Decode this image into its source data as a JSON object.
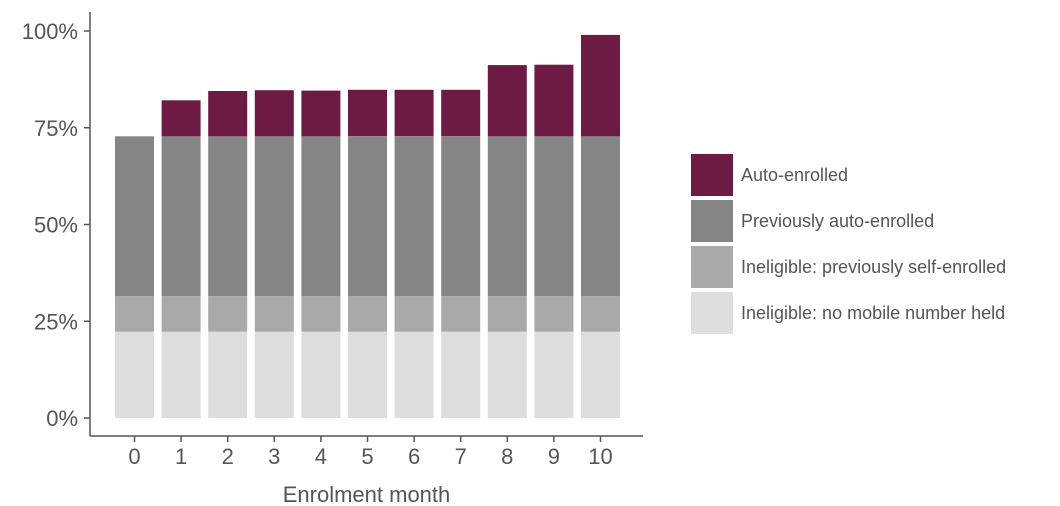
{
  "chart_data": {
    "type": "bar",
    "stacked": true,
    "title": "",
    "xlabel": "Enrolment month",
    "ylabel": "",
    "categories": [
      "0",
      "1",
      "2",
      "3",
      "4",
      "5",
      "6",
      "7",
      "8",
      "9",
      "10"
    ],
    "ylim": [
      0,
      100
    ],
    "y_ticks": [
      0,
      25,
      50,
      75,
      100
    ],
    "y_tick_labels": [
      "0%",
      "25%",
      "50%",
      "75%",
      "100%"
    ],
    "grid": false,
    "legend_position": "right",
    "series": [
      {
        "name": "Ineligible: no mobile number held",
        "color": "#dddddd",
        "values": [
          22.3,
          22.3,
          22.3,
          22.3,
          22.3,
          22.3,
          22.3,
          22.3,
          22.3,
          22.3,
          22.3
        ]
      },
      {
        "name": "Ineligible: previously self-enrolled",
        "color": "#a9a9a9",
        "values": [
          9.2,
          9.2,
          9.2,
          9.2,
          9.2,
          9.2,
          9.2,
          9.2,
          9.2,
          9.2,
          9.2
        ]
      },
      {
        "name": "Previously auto-enrolled",
        "color": "#858585",
        "values": [
          41.3,
          41.3,
          41.3,
          41.3,
          41.3,
          41.3,
          41.3,
          41.3,
          41.3,
          41.3,
          41.3
        ]
      },
      {
        "name": "Auto-enrolled",
        "color": "#6d1a45",
        "values": [
          0,
          9.3,
          11.7,
          11.9,
          11.8,
          12.0,
          12.0,
          12.0,
          18.4,
          18.5,
          26.2
        ]
      }
    ],
    "legend_order": [
      "Auto-enrolled",
      "Previously auto-enrolled",
      "Ineligible: previously self-enrolled",
      "Ineligible: no mobile number held"
    ]
  }
}
